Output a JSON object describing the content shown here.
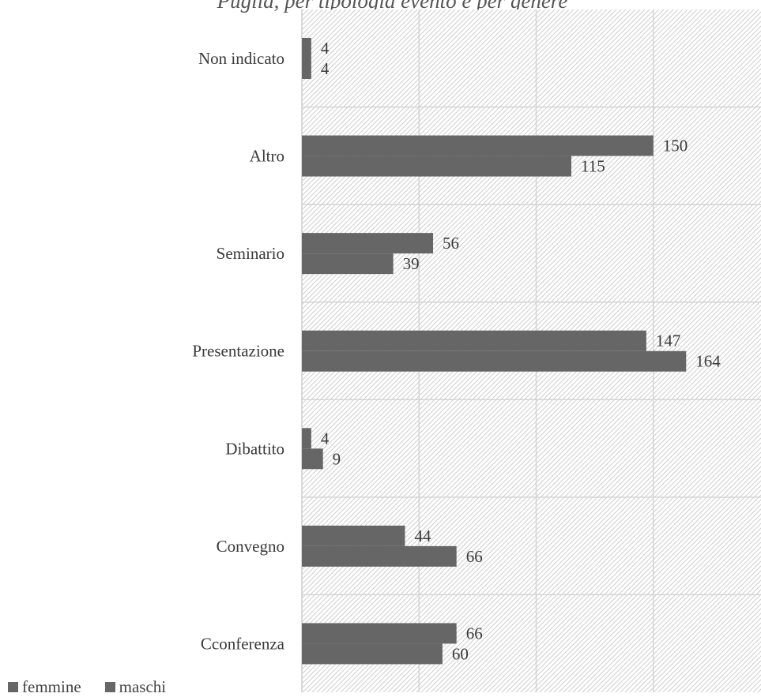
{
  "chart_data": {
    "type": "bar",
    "orientation": "horizontal",
    "title": "Puglia, per tipologia evento e per genere",
    "categories": [
      "Non indicato",
      "Altro",
      "Seminario",
      "Presentazione",
      "Dibattito",
      "Convegno",
      "Cconferenza"
    ],
    "series": [
      {
        "name": "femmine",
        "values": [
          4,
          150,
          56,
          147,
          4,
          44,
          66
        ]
      },
      {
        "name": "maschi",
        "values": [
          4,
          115,
          39,
          164,
          9,
          66,
          60
        ]
      }
    ],
    "xlim": [
      0,
      200
    ],
    "grid": true,
    "legend_position": "bottom-left",
    "colors": {
      "bar": "#666666",
      "grid": "#d4d4d4",
      "hatch": "#cfcfcf",
      "label": "#3a3a3a"
    }
  }
}
